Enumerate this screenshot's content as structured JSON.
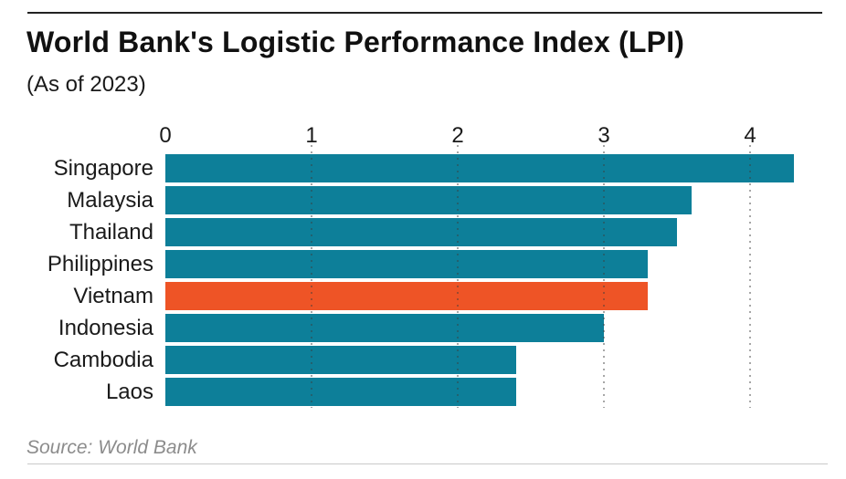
{
  "page": {
    "title": "World Bank's Logistic Performance Index (LPI)",
    "subtitle": "(As of 2023)",
    "source": "Source: World Bank"
  },
  "chart_data": {
    "type": "bar",
    "orientation": "horizontal",
    "title": "World Bank's Logistic Performance Index (LPI)",
    "subtitle": "(As of 2023)",
    "categories": [
      "Singapore",
      "Malaysia",
      "Thailand",
      "Philippines",
      "Vietnam",
      "Indonesia",
      "Cambodia",
      "Laos"
    ],
    "values": [
      4.3,
      3.6,
      3.5,
      3.3,
      3.3,
      3.0,
      2.4,
      2.4
    ],
    "highlight_category": "Vietnam",
    "x_ticks": [
      0,
      1,
      2,
      3,
      4
    ],
    "xlim": [
      0,
      4.65
    ],
    "xlabel": "",
    "ylabel": "",
    "grid": "dotted-vertical-at-ticks",
    "legend": false,
    "colors": {
      "bar": "#0d7f99",
      "highlight": "#ee5426"
    },
    "source": "Source: World Bank"
  }
}
